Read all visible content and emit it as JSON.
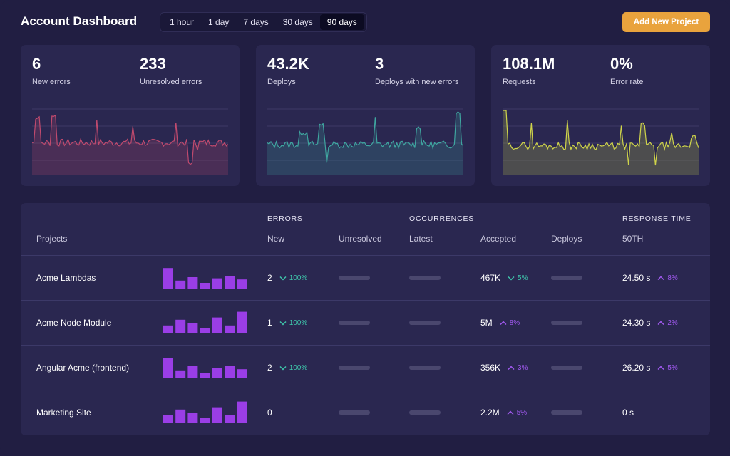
{
  "header": {
    "title": "Account Dashboard",
    "ranges": [
      "1 hour",
      "1 day",
      "7 days",
      "30 days",
      "90 days"
    ],
    "active_range": "90 days",
    "add_button": "Add New Project"
  },
  "colors": {
    "background": "#211e42",
    "card": "#2a2750",
    "accent": "#e9a33d",
    "errors_line": "#c04a6e",
    "deploys_line": "#3fa6a0",
    "requests_line": "#cfd44a",
    "bar": "#9a3ee6",
    "delta_down": "#3fc7ac",
    "delta_up": "#a35af2"
  },
  "cards": [
    {
      "metrics": [
        {
          "value": "6",
          "label": "New errors"
        },
        {
          "value": "233",
          "label": "Unresolved errors"
        }
      ]
    },
    {
      "metrics": [
        {
          "value": "43.2K",
          "label": "Deploys"
        },
        {
          "value": "3",
          "label": "Deploys with new errors"
        }
      ]
    },
    {
      "metrics": [
        {
          "value": "108.1M",
          "label": "Requests"
        },
        {
          "value": "0%",
          "label": "Error rate"
        }
      ]
    }
  ],
  "table": {
    "groups": {
      "errors": "ERRORS",
      "occurrences": "OCCURRENCES",
      "response": "RESPONSE TIME"
    },
    "columns": {
      "projects": "Projects",
      "new": "New",
      "unresolved": "Unresolved",
      "latest": "Latest",
      "accepted": "Accepted",
      "deploys": "Deploys",
      "p50": "50TH"
    },
    "rows": [
      {
        "name": "Acme Lambdas",
        "bars": [
          0.9,
          0.35,
          0.5,
          0.25,
          0.45,
          0.55,
          0.4
        ],
        "new": "2",
        "new_delta": "100%",
        "new_dir": "down",
        "accepted": "467K",
        "accepted_delta": "5%",
        "accepted_dir": "down",
        "p50": "24.50 s",
        "p50_delta": "8%",
        "p50_dir": "up"
      },
      {
        "name": "Acme Node Module",
        "bars": [
          0.35,
          0.6,
          0.45,
          0.25,
          0.7,
          0.35,
          0.95
        ],
        "new": "1",
        "new_delta": "100%",
        "new_dir": "down",
        "accepted": "5M",
        "accepted_delta": "8%",
        "accepted_dir": "up",
        "p50": "24.30 s",
        "p50_delta": "2%",
        "p50_dir": "up"
      },
      {
        "name": "Angular Acme (frontend)",
        "bars": [
          0.9,
          0.35,
          0.55,
          0.25,
          0.45,
          0.55,
          0.4
        ],
        "new": "2",
        "new_delta": "100%",
        "new_dir": "down",
        "accepted": "356K",
        "accepted_delta": "3%",
        "accepted_dir": "up",
        "p50": "26.20 s",
        "p50_delta": "5%",
        "p50_dir": "up"
      },
      {
        "name": "Marketing Site",
        "bars": [
          0.35,
          0.6,
          0.45,
          0.25,
          0.7,
          0.35,
          0.95
        ],
        "new": "0",
        "new_delta": "",
        "new_dir": "",
        "accepted": "2.2M",
        "accepted_delta": "5%",
        "accepted_dir": "up",
        "p50": "0 s",
        "p50_delta": "",
        "p50_dir": ""
      }
    ]
  }
}
